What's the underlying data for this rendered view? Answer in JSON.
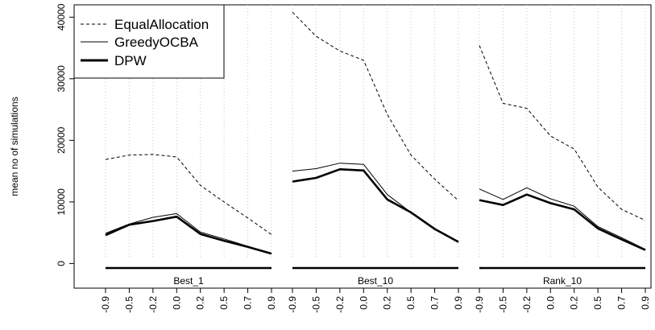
{
  "chart_data": {
    "type": "line",
    "ylabel": "mean no of simulations",
    "ylim": [
      -4000,
      42000
    ],
    "y_ticks": [
      0,
      10000,
      20000,
      30000,
      40000
    ],
    "y_tick_labels": [
      "0",
      "10000",
      "20000",
      "30000",
      "40000"
    ],
    "x": [
      -0.9,
      -0.5,
      -0.2,
      0.0,
      0.2,
      0.5,
      0.7,
      0.9
    ],
    "x_tick_labels": [
      "-0.9",
      "-0.5",
      "-0.2",
      "0.0",
      "0.2",
      "0.5",
      "0.7",
      "0.9"
    ],
    "grid": "vertical dotted",
    "legend_position": "top-left",
    "legend": [
      {
        "name": "EqualAllocation",
        "style": "dashed"
      },
      {
        "name": "GreedyOCBA",
        "style": "thin"
      },
      {
        "name": "DPW",
        "style": "thick"
      }
    ],
    "panels": [
      {
        "label": "Best_1",
        "series": [
          {
            "name": "EqualAllocation",
            "values": [
              16900,
              17600,
              17700,
              17300,
              12700,
              10000,
              7400,
              4700
            ]
          },
          {
            "name": "GreedyOCBA",
            "values": [
              4900,
              6400,
              7500,
              8100,
              5100,
              4000,
              2800,
              1600
            ]
          },
          {
            "name": "DPW",
            "values": [
              4600,
              6300,
              6900,
              7600,
              4800,
              3700,
              2700,
              1600
            ]
          }
        ]
      },
      {
        "label": "Best_10",
        "series": [
          {
            "name": "EqualAllocation",
            "values": [
              40800,
              36900,
              34500,
              33000,
              24200,
              17600,
              13700,
              10200
            ]
          },
          {
            "name": "GreedyOCBA",
            "values": [
              15000,
              15400,
              16300,
              16100,
              11200,
              8300,
              5600,
              3600
            ]
          },
          {
            "name": "DPW",
            "values": [
              13300,
              13900,
              15300,
              15100,
              10400,
              8300,
              5600,
              3500
            ]
          }
        ]
      },
      {
        "label": "Rank_10",
        "series": [
          {
            "name": "EqualAllocation",
            "values": [
              35400,
              26000,
              25200,
              20700,
              18600,
              12400,
              8800,
              7000
            ]
          },
          {
            "name": "GreedyOCBA",
            "values": [
              12100,
              10400,
              12300,
              10500,
              9300,
              6000,
              4200,
              2300
            ]
          },
          {
            "name": "DPW",
            "values": [
              10300,
              9500,
              11200,
              9800,
              8800,
              5700,
              3900,
              2200
            ]
          }
        ]
      }
    ]
  }
}
